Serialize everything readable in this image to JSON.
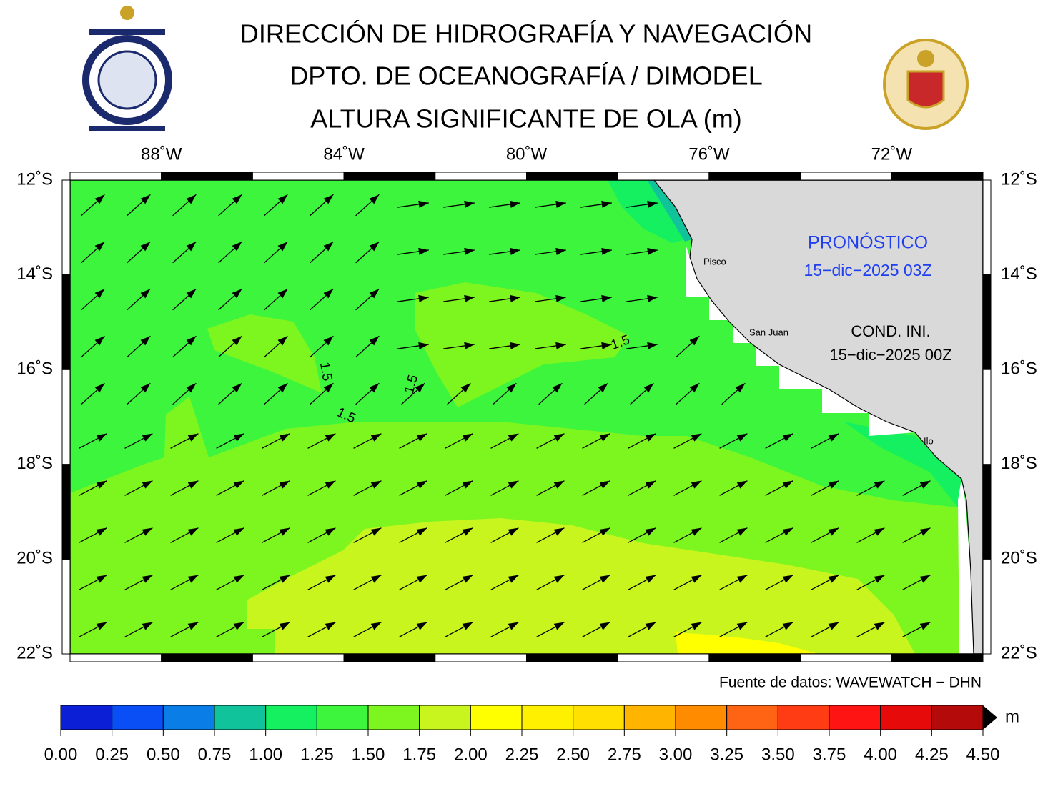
{
  "header": {
    "title": "DIRECCIÓN DE HIDROGRAFÍA Y NAVEGACIÓN",
    "subtitle": "DPTO. DE OCEANOGRAFÍA / DIMODEL",
    "variable": "ALTURA SIGNIFICANTE DE OLA (m)"
  },
  "map": {
    "lon_range": [
      -90,
      -70
    ],
    "lat_range": [
      -12,
      -22
    ],
    "lon_ticks": [
      {
        "value": -88,
        "label": "88˚W"
      },
      {
        "value": -84,
        "label": "84˚W"
      },
      {
        "value": -80,
        "label": "80˚W"
      },
      {
        "value": -76,
        "label": "76˚W"
      },
      {
        "value": -72,
        "label": "72˚W"
      }
    ],
    "lat_ticks": [
      {
        "value": -12,
        "label": "12˚S"
      },
      {
        "value": -14,
        "label": "14˚S"
      },
      {
        "value": -16,
        "label": "16˚S"
      },
      {
        "value": -18,
        "label": "18˚S"
      },
      {
        "value": -20,
        "label": "20˚S"
      },
      {
        "value": -22,
        "label": "22˚S"
      }
    ],
    "places": [
      "Pisco",
      "San Juan",
      "Ilo"
    ],
    "forecast_label": "PRONÓSTICO",
    "forecast_date": "15−dic−2025 03Z",
    "init_label": "COND. INI.",
    "init_date": "15−dic−2025 00Z",
    "contour_labels": [
      "1.5",
      "1.5",
      "1.5",
      "1.5"
    ],
    "source": "Fuente de datos: WAVEWATCH − DHN"
  },
  "colorbar": {
    "unit": "m",
    "colors": [
      "#0a1fd6",
      "#0a4ef5",
      "#0a7de6",
      "#10c39a",
      "#14f060",
      "#3ef53e",
      "#7df51e",
      "#c8f51e",
      "#ffff00",
      "#fff000",
      "#ffe000",
      "#ffb400",
      "#ff8c00",
      "#ff6414",
      "#ff3c14",
      "#ff1414",
      "#e60a0a",
      "#b40a0a"
    ],
    "ticks": [
      {
        "value": 0,
        "label": "0.00"
      },
      {
        "value": 0.25,
        "label": "0.25"
      },
      {
        "value": 0.5,
        "label": "0.50"
      },
      {
        "value": 0.75,
        "label": "0.75"
      },
      {
        "value": 1,
        "label": "1.00"
      },
      {
        "value": 1.25,
        "label": "1.25"
      },
      {
        "value": 1.5,
        "label": "1.50"
      },
      {
        "value": 1.75,
        "label": "1.75"
      },
      {
        "value": 2,
        "label": "2.00"
      },
      {
        "value": 2.25,
        "label": "2.25"
      },
      {
        "value": 2.5,
        "label": "2.50"
      },
      {
        "value": 2.75,
        "label": "2.75"
      },
      {
        "value": 3,
        "label": "3.00"
      },
      {
        "value": 3.25,
        "label": "3.25"
      },
      {
        "value": 3.5,
        "label": "3.50"
      },
      {
        "value": 3.75,
        "label": "3.75"
      },
      {
        "value": 4,
        "label": "4.00"
      },
      {
        "value": 4.25,
        "label": "4.25"
      },
      {
        "value": 4.5,
        "label": "4.50"
      }
    ]
  }
}
